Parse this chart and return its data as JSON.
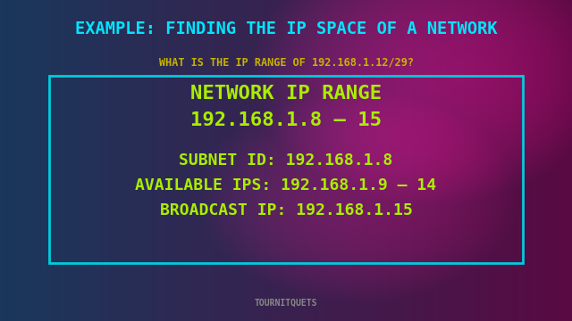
{
  "title": "EXAMPLE: FINDING THE IP SPACE OF A NETWORK",
  "subtitle": "WHAT IS THE IP RANGE OF 192.168.1.12/29?",
  "box_line1": "NETWORK IP RANGE",
  "box_line2": "192.168.1.8 – 15",
  "box_line3": "SUBNET ID: 192.168.1.8",
  "box_line4": "AVAILABLE IPS: 192.168.1.9 – 14",
  "box_line5": "BROADCAST IP: 192.168.1.15",
  "footer": "TOURNITQUETS",
  "title_color": "#00e5ff",
  "subtitle_color": "#c8b400",
  "box_text_color": "#aaee00",
  "footer_color": "#888888",
  "box_border_color": "#00ccdd",
  "bg_color_left": "#1a3a5c",
  "bg_color_right": "#5a1a5c"
}
